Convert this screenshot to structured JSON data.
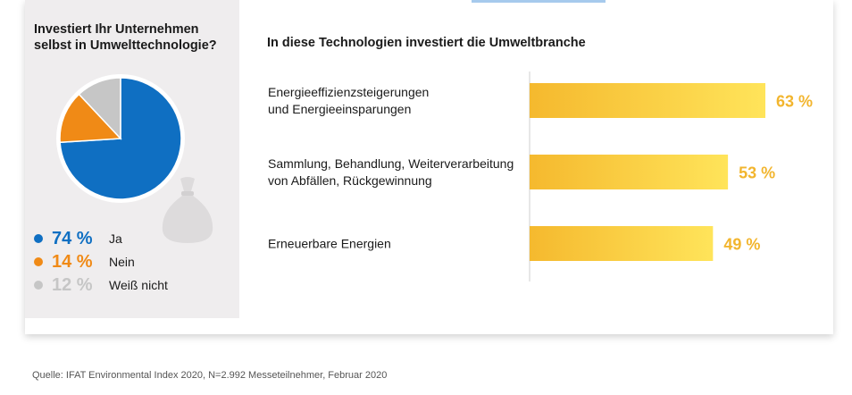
{
  "colors": {
    "ja": "#0f6fc2",
    "nein": "#f08a16",
    "weiss_nicht": "#c6c6c6",
    "bar_start": "#f5b92e",
    "bar_end": "#ffe45a",
    "bar_label": "#f2b52e"
  },
  "pie": {
    "title": "Investiert Ihr Unternehmen selbst in Umwelttechnologie?",
    "legend": [
      {
        "value": "74 %",
        "label": "Ja"
      },
      {
        "value": "14 %",
        "label": "Nein"
      },
      {
        "value": "12 %",
        "label": "Weiß nicht"
      }
    ]
  },
  "bars": {
    "title": "In diese Technologien investiert die Umweltbranche",
    "items": [
      {
        "line1": "Energieeffizienzsteigerungen",
        "line2": "und Energieeinsparungen",
        "label": "63 %"
      },
      {
        "line1": "Sammlung, Behandlung, Weiterverarbeitung",
        "line2": "von Abfällen, Rückgewinnung",
        "label": "53 %"
      },
      {
        "line1": "Erneuerbare Energien",
        "line2": "",
        "label": "49 %"
      }
    ]
  },
  "source": "Quelle: IFAT Environmental Index 2020, N=2.992 Messeteilnehmer, Februar 2020",
  "chart_data": [
    {
      "type": "pie",
      "title": "Investiert Ihr Unternehmen selbst in Umwelttechnologie?",
      "categories": [
        "Ja",
        "Nein",
        "Weiß nicht"
      ],
      "values": [
        74,
        14,
        12
      ]
    },
    {
      "type": "bar",
      "orientation": "horizontal",
      "title": "In diese Technologien investiert die Umweltbranche",
      "categories": [
        "Energieeffizienzsteigerungen und Energieeinsparungen",
        "Sammlung, Behandlung, Weiterverarbeitung von Abfällen, Rückgewinnung",
        "Erneuerbare Energien"
      ],
      "values": [
        63,
        53,
        49
      ],
      "xlim": [
        0,
        100
      ]
    }
  ]
}
